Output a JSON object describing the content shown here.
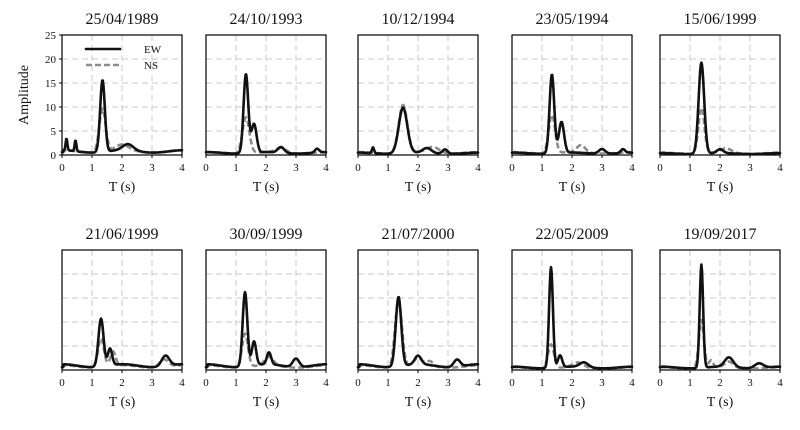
{
  "chart_data": {
    "type": "line",
    "ylabel": "Amplitude",
    "xlabel": "T (s)",
    "xlim": [
      0,
      4
    ],
    "ylim": [
      0,
      25
    ],
    "x_ticks": [
      "0",
      "1",
      "2",
      "3",
      "4"
    ],
    "y_ticks": [
      "0",
      "5",
      "10",
      "15",
      "20",
      "25"
    ],
    "legend": {
      "position": "top-right-inside-first-panel",
      "entries": [
        "EW",
        "NS"
      ]
    },
    "series_colors": {
      "EW": "#111111",
      "NS": "#8c8c8c"
    },
    "grid": true,
    "panels": [
      {
        "title": "25/04/1989",
        "peak_t": 1.35,
        "ew": {
          "peak": 15,
          "width": 0.11,
          "base": 1.0,
          "bumps": [
            [
              0.15,
              2.5,
              0.04
            ],
            [
              0.45,
              2.3,
              0.04
            ],
            [
              2.2,
              1.3,
              0.25
            ]
          ]
        },
        "ns": {
          "peak": 9,
          "width": 0.15,
          "base": 1.0,
          "bumps": [
            [
              2.0,
              1.2,
              0.3
            ]
          ]
        }
      },
      {
        "title": "24/10/1993",
        "peak_t": 1.33,
        "ew": {
          "peak": 16.5,
          "width": 0.11,
          "base": 0.6,
          "bumps": [
            [
              1.6,
              6,
              0.12
            ],
            [
              2.5,
              1.2,
              0.15
            ],
            [
              3.7,
              0.8,
              0.1
            ]
          ]
        },
        "ns": {
          "peak": 7.5,
          "width": 0.16,
          "base": 0.6,
          "bumps": [
            [
              2.5,
              1.0,
              0.25
            ]
          ]
        }
      },
      {
        "title": "10/12/1994",
        "peak_t": 1.5,
        "ew": {
          "peak": 9.5,
          "width": 0.2,
          "base": 0.5,
          "bumps": [
            [
              0.5,
              1.2,
              0.05
            ],
            [
              2.3,
              1.0,
              0.2
            ],
            [
              2.9,
              0.9,
              0.12
            ]
          ]
        },
        "ns": {
          "peak": 10,
          "width": 0.2,
          "base": 0.6,
          "bumps": [
            [
              2.5,
              1.2,
              0.3
            ]
          ]
        }
      },
      {
        "title": "23/05/1994",
        "peak_t": 1.33,
        "ew": {
          "peak": 16.5,
          "width": 0.11,
          "base": 0.5,
          "bumps": [
            [
              1.65,
              6.5,
              0.12
            ],
            [
              3.0,
              1.0,
              0.15
            ],
            [
              3.7,
              0.8,
              0.1
            ]
          ]
        },
        "ns": {
          "peak": 8,
          "width": 0.15,
          "base": 0.6,
          "bumps": [
            [
              2.3,
              1.5,
              0.2
            ]
          ]
        }
      },
      {
        "title": "15/06/1999",
        "peak_t": 1.38,
        "ew": {
          "peak": 19,
          "width": 0.13,
          "base": 0.4,
          "bumps": [
            [
              2.0,
              0.8,
              0.15
            ]
          ]
        },
        "ns": {
          "peak": 9.5,
          "width": 0.14,
          "base": 0.5,
          "bumps": [
            [
              2.2,
              0.9,
              0.25
            ]
          ]
        }
      },
      {
        "title": "21/06/1999",
        "peak_t": 1.3,
        "ew": {
          "peak": 10,
          "width": 0.12,
          "base": 1.2,
          "bumps": [
            [
              1.6,
              3.5,
              0.1
            ],
            [
              3.45,
              2.2,
              0.18
            ]
          ]
        },
        "ns": {
          "peak": 6,
          "width": 0.14,
          "base": 1.0,
          "bumps": [
            [
              1.7,
              3,
              0.12
            ],
            [
              3.4,
              1.6,
              0.2
            ]
          ]
        }
      },
      {
        "title": "30/09/1999",
        "peak_t": 1.3,
        "ew": {
          "peak": 15.5,
          "width": 0.11,
          "base": 1.2,
          "bumps": [
            [
              1.6,
              5,
              0.1
            ],
            [
              2.1,
              2.5,
              0.1
            ],
            [
              3.0,
              1.8,
              0.15
            ]
          ]
        },
        "ns": {
          "peak": 7,
          "width": 0.14,
          "base": 1.0,
          "bumps": [
            [
              2.1,
              1.8,
              0.2
            ]
          ]
        }
      },
      {
        "title": "21/07/2000",
        "peak_t": 1.35,
        "ew": {
          "peak": 14.5,
          "width": 0.13,
          "base": 1.2,
          "bumps": [
            [
              2.0,
              1.8,
              0.15
            ],
            [
              3.3,
              1.5,
              0.15
            ]
          ]
        },
        "ns": {
          "peak": 14,
          "width": 0.16,
          "base": 1.0,
          "bumps": [
            [
              2.0,
              1.5,
              0.2
            ],
            [
              2.4,
              1.0,
              0.15
            ]
          ]
        }
      },
      {
        "title": "22/05/2009",
        "peak_t": 1.3,
        "ew": {
          "peak": 21,
          "width": 0.09,
          "base": 0.7,
          "bumps": [
            [
              1.6,
              2.5,
              0.1
            ],
            [
              2.4,
              1.0,
              0.2
            ]
          ]
        },
        "ns": {
          "peak": 5,
          "width": 0.14,
          "base": 0.6,
          "bumps": [
            [
              2.2,
              1.0,
              0.25
            ]
          ]
        }
      },
      {
        "title": "19/09/2017",
        "peak_t": 1.38,
        "ew": {
          "peak": 21.5,
          "width": 0.08,
          "base": 0.7,
          "bumps": [
            [
              2.3,
              2.0,
              0.2
            ],
            [
              3.3,
              1.0,
              0.2
            ]
          ]
        },
        "ns": {
          "peak": 10,
          "width": 0.12,
          "base": 0.6,
          "bumps": [
            [
              1.7,
              1.5,
              0.1
            ],
            [
              2.3,
              1.2,
              0.2
            ]
          ]
        }
      }
    ]
  }
}
